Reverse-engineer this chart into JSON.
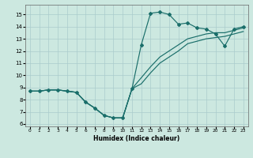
{
  "xlabel": "Humidex (Indice chaleur)",
  "bg_color": "#cce8e0",
  "grid_color": "#aacccc",
  "line_color": "#1a6e6a",
  "xlim": [
    -0.5,
    23.5
  ],
  "ylim": [
    5.8,
    15.8
  ],
  "yticks": [
    6,
    7,
    8,
    9,
    10,
    11,
    12,
    13,
    14,
    15
  ],
  "xticks": [
    0,
    1,
    2,
    3,
    4,
    5,
    6,
    7,
    8,
    9,
    10,
    11,
    12,
    13,
    14,
    15,
    16,
    17,
    18,
    19,
    20,
    21,
    22,
    23
  ],
  "line1_x": [
    0,
    1,
    2,
    3,
    4,
    5,
    6,
    7,
    8,
    9,
    10,
    11,
    12,
    13,
    14,
    15,
    16,
    17,
    18,
    19,
    20,
    21,
    22,
    23
  ],
  "line1_y": [
    8.7,
    8.7,
    8.8,
    8.8,
    8.7,
    8.6,
    7.8,
    7.3,
    6.7,
    6.5,
    6.5,
    8.9,
    12.5,
    15.1,
    15.2,
    15.0,
    14.2,
    14.3,
    13.9,
    13.8,
    13.4,
    12.4,
    13.8,
    14.0
  ],
  "line2_x": [
    0,
    1,
    2,
    3,
    4,
    5,
    6,
    7,
    8,
    9,
    10,
    11,
    12,
    13,
    14,
    15,
    16,
    17,
    18,
    19,
    20,
    21,
    22,
    23
  ],
  "line2_y": [
    8.7,
    8.7,
    8.8,
    8.8,
    8.7,
    8.6,
    7.8,
    7.3,
    6.7,
    6.5,
    6.5,
    8.9,
    9.8,
    10.7,
    11.5,
    12.0,
    12.5,
    13.0,
    13.2,
    13.4,
    13.5,
    13.5,
    13.7,
    13.9
  ],
  "line3_x": [
    0,
    1,
    2,
    3,
    4,
    5,
    6,
    7,
    8,
    9,
    10,
    11,
    12,
    13,
    14,
    15,
    16,
    17,
    18,
    19,
    20,
    21,
    22,
    23
  ],
  "line3_y": [
    8.7,
    8.7,
    8.8,
    8.8,
    8.7,
    8.6,
    7.8,
    7.3,
    6.7,
    6.5,
    6.5,
    8.9,
    9.3,
    10.2,
    11.0,
    11.5,
    12.0,
    12.6,
    12.8,
    13.0,
    13.1,
    13.2,
    13.4,
    13.6
  ]
}
